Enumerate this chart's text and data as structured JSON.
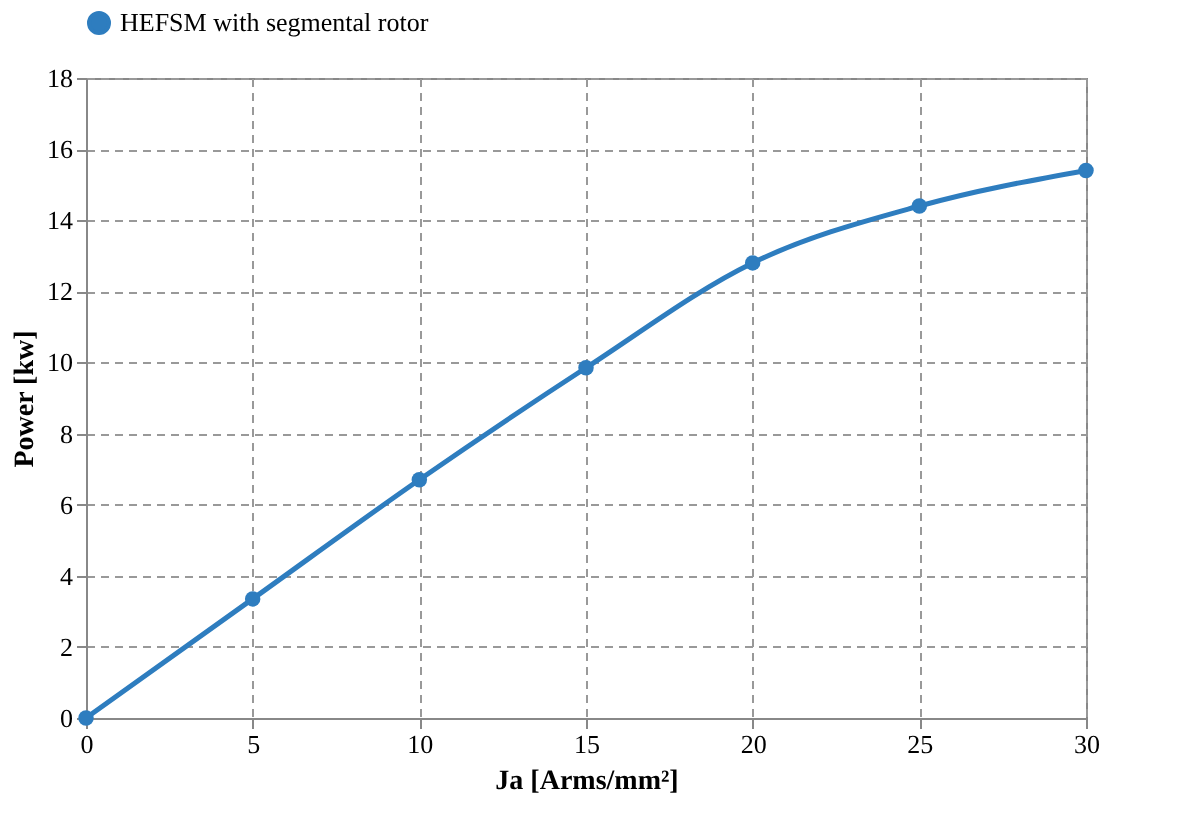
{
  "chart_data": {
    "type": "line",
    "xlabel": "Ja [Arms/mm²]",
    "ylabel": "Power [kw]",
    "x": [
      0,
      5,
      10,
      15,
      20,
      25,
      30
    ],
    "series": [
      {
        "name": "HEFSM with segmental rotor",
        "color": "#2e7dbf",
        "values": [
          0,
          3.35,
          6.7,
          9.85,
          12.8,
          14.4,
          15.4
        ]
      }
    ],
    "xlim": [
      0,
      30
    ],
    "xticks": [
      0,
      5,
      10,
      15,
      20,
      25,
      30
    ],
    "ylim": [
      0,
      18
    ],
    "yticks": [
      0,
      2,
      4,
      6,
      8,
      10,
      12,
      14,
      16,
      18
    ],
    "grid": true,
    "legend": "top",
    "marker": "circle",
    "line_style": "solid"
  }
}
